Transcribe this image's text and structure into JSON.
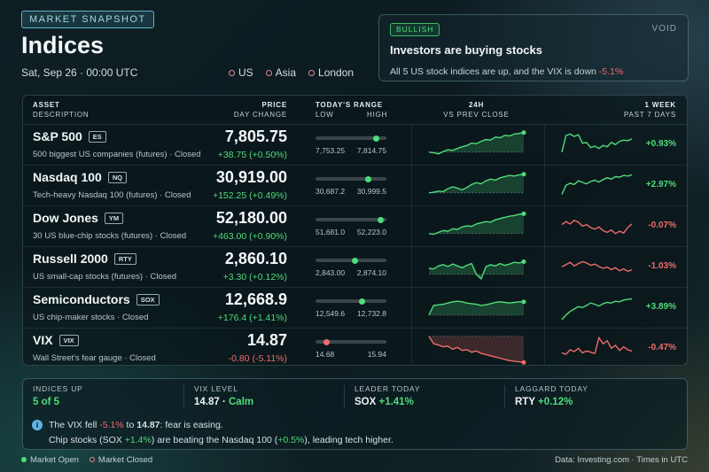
{
  "header": {
    "badge": "MARKET SNAPSHOT",
    "title": "Indices",
    "datetime": "Sat, Sep 26 · 00:00 UTC",
    "markets": [
      "US",
      "Asia",
      "London"
    ]
  },
  "sentiment": {
    "badge": "BULLISH",
    "brand": "VOID",
    "headline": "Investors are buying stocks",
    "body_prefix": "All 5 US stock indices are up, and the VIX is down ",
    "body_value": "-5.1%"
  },
  "table_header": {
    "asset": "ASSET",
    "description": "DESCRIPTION",
    "price": "PRICE",
    "day_change": "DAY CHANGE",
    "todays_range": "TODAY'S RANGE",
    "low": "LOW",
    "high": "HIGH",
    "h24": "24H",
    "vs_prev": "VS PREV CLOSE",
    "week": "1 WEEK",
    "past7": "PAST 7 DAYS"
  },
  "rows": [
    {
      "name": "S&P 500",
      "ticker": "ES",
      "desc": "500 biggest US companies (futures)  ·  Closed",
      "price": "7,805.75",
      "change": "+38.75 (+0.50%)",
      "low": "7,753.25",
      "high": "7,814.75",
      "range_pos": 0.86,
      "week": "+0.93%",
      "up": true,
      "weekup": true,
      "s24": [
        0.3,
        0.28,
        0.24,
        0.32,
        0.38,
        0.36,
        0.42,
        0.48,
        0.52,
        0.6,
        0.58,
        0.66,
        0.72,
        0.7,
        0.8,
        0.78,
        0.86,
        0.84,
        0.9,
        0.92,
        0.95
      ],
      "s1w": [
        0.3,
        0.85,
        0.9,
        0.82,
        0.88,
        0.6,
        0.62,
        0.45,
        0.5,
        0.42,
        0.52,
        0.48,
        0.62,
        0.55,
        0.66,
        0.7,
        0.68,
        0.74
      ]
    },
    {
      "name": "Nasdaq 100",
      "ticker": "NQ",
      "desc": "Tech-heavy Nasdaq 100 (futures)  ·  Closed",
      "price": "30,919.00",
      "change": "+152.25 (+0.49%)",
      "low": "30,687.2",
      "high": "30,999.5",
      "range_pos": 0.74,
      "week": "+2.97%",
      "up": true,
      "weekup": true,
      "s24": [
        0.3,
        0.32,
        0.36,
        0.34,
        0.44,
        0.5,
        0.46,
        0.4,
        0.48,
        0.58,
        0.64,
        0.6,
        0.7,
        0.76,
        0.72,
        0.8,
        0.84,
        0.88,
        0.86,
        0.9,
        0.92
      ],
      "s1w": [
        0.25,
        0.55,
        0.62,
        0.58,
        0.7,
        0.65,
        0.6,
        0.68,
        0.72,
        0.66,
        0.74,
        0.8,
        0.76,
        0.84,
        0.82,
        0.88,
        0.86,
        0.9
      ]
    },
    {
      "name": "Dow Jones",
      "ticker": "YM",
      "desc": "30 US blue-chip stocks (futures)  ·  Closed",
      "price": "52,180.00",
      "change": "+463.00 (+0.90%)",
      "low": "51,681.0",
      "high": "52,223.0",
      "range_pos": 0.92,
      "week": "-0.07%",
      "up": true,
      "weekup": false,
      "s24": [
        0.3,
        0.28,
        0.34,
        0.4,
        0.38,
        0.46,
        0.44,
        0.52,
        0.56,
        0.54,
        0.62,
        0.66,
        0.7,
        0.68,
        0.76,
        0.8,
        0.84,
        0.88,
        0.9,
        0.94,
        0.96
      ],
      "s1w": [
        0.6,
        0.7,
        0.62,
        0.74,
        0.68,
        0.55,
        0.6,
        0.5,
        0.45,
        0.52,
        0.4,
        0.34,
        0.42,
        0.3,
        0.38,
        0.32,
        0.5,
        0.62
      ]
    },
    {
      "name": "Russell 2000",
      "ticker": "RTY",
      "desc": "US small-cap stocks (futures)  ·  Closed",
      "price": "2,860.10",
      "change": "+3.30 (+0.12%)",
      "low": "2,843.00",
      "high": "2,874.10",
      "range_pos": 0.55,
      "week": "-1.03%",
      "up": true,
      "weekup": false,
      "s24": [
        0.5,
        0.48,
        0.58,
        0.62,
        0.56,
        0.64,
        0.58,
        0.52,
        0.6,
        0.66,
        0.3,
        0.15,
        0.55,
        0.62,
        0.58,
        0.66,
        0.6,
        0.64,
        0.7,
        0.68,
        0.72
      ],
      "s1w": [
        0.55,
        0.62,
        0.7,
        0.58,
        0.66,
        0.72,
        0.68,
        0.6,
        0.64,
        0.56,
        0.5,
        0.54,
        0.46,
        0.52,
        0.42,
        0.48,
        0.4,
        0.45
      ]
    },
    {
      "name": "Semiconductors",
      "ticker": "SOX",
      "desc": "US chip-maker stocks  ·  Closed",
      "price": "12,668.9",
      "change": "+176.4 (+1.41%)",
      "low": "12,549.6",
      "high": "12,732.8",
      "range_pos": 0.65,
      "week": "+3.89%",
      "up": true,
      "weekup": true,
      "s24": [
        0.3,
        0.62,
        0.64,
        0.66,
        0.7,
        0.74,
        0.76,
        0.74,
        0.7,
        0.68,
        0.66,
        0.62,
        0.64,
        0.68,
        0.72,
        0.74,
        0.72,
        0.7,
        0.72,
        0.74,
        0.74
      ],
      "s1w": [
        0.15,
        0.3,
        0.42,
        0.5,
        0.58,
        0.55,
        0.62,
        0.7,
        0.66,
        0.6,
        0.68,
        0.72,
        0.7,
        0.76,
        0.74,
        0.8,
        0.82,
        0.84
      ]
    },
    {
      "name": "VIX",
      "ticker": "VIX",
      "desc": "Wall Street's fear gauge  ·  Closed",
      "price": "14.87",
      "change": "-0.80 (-5.11%)",
      "low": "14.68",
      "high": "15.94",
      "range_pos": 0.15,
      "week": "-0.47%",
      "up": false,
      "weekup": false,
      "s24": [
        0.95,
        0.7,
        0.66,
        0.6,
        0.62,
        0.52,
        0.58,
        0.48,
        0.5,
        0.42,
        0.46,
        0.38,
        0.34,
        0.3,
        0.26,
        0.22,
        0.18,
        0.14,
        0.12,
        0.1,
        0.08
      ],
      "s1w": [
        0.4,
        0.35,
        0.5,
        0.44,
        0.55,
        0.4,
        0.46,
        0.42,
        0.38,
        0.9,
        0.7,
        0.8,
        0.55,
        0.65,
        0.48,
        0.6,
        0.5,
        0.46
      ]
    }
  ],
  "summary": {
    "stats": [
      {
        "label": "INDICES UP",
        "value": "5 of 5",
        "value_class": "green",
        "suffix": ""
      },
      {
        "label": "VIX LEVEL",
        "value": "14.87 · ",
        "value_class": "",
        "suffix": "Calm"
      },
      {
        "label": "LEADER TODAY",
        "value": "SOX ",
        "value_class": "",
        "suffix": "+1.41%"
      },
      {
        "label": "LAGGARD TODAY",
        "value": "RTY ",
        "value_class": "",
        "suffix": "+0.12%"
      }
    ],
    "line1": {
      "a": "The VIX fell ",
      "b": "-5.1%",
      "c": " to ",
      "d": "14.87",
      "e": ": fear is easing."
    },
    "line2": {
      "a": "Chip stocks (SOX ",
      "b": "+1.4%",
      "c": ") are beating the Nasdaq 100 (",
      "d": "+0.5%",
      "e": "), leading tech higher."
    }
  },
  "footer": {
    "open": "Market Open",
    "closed": "Market Closed",
    "source": "Data: Investing.com  ·  Times in UTC"
  },
  "colors": {
    "up": "#4fdc7a",
    "down": "#f06a6a",
    "open_dot": "#4fdc7a",
    "closed_dot": "#e08a8a"
  }
}
